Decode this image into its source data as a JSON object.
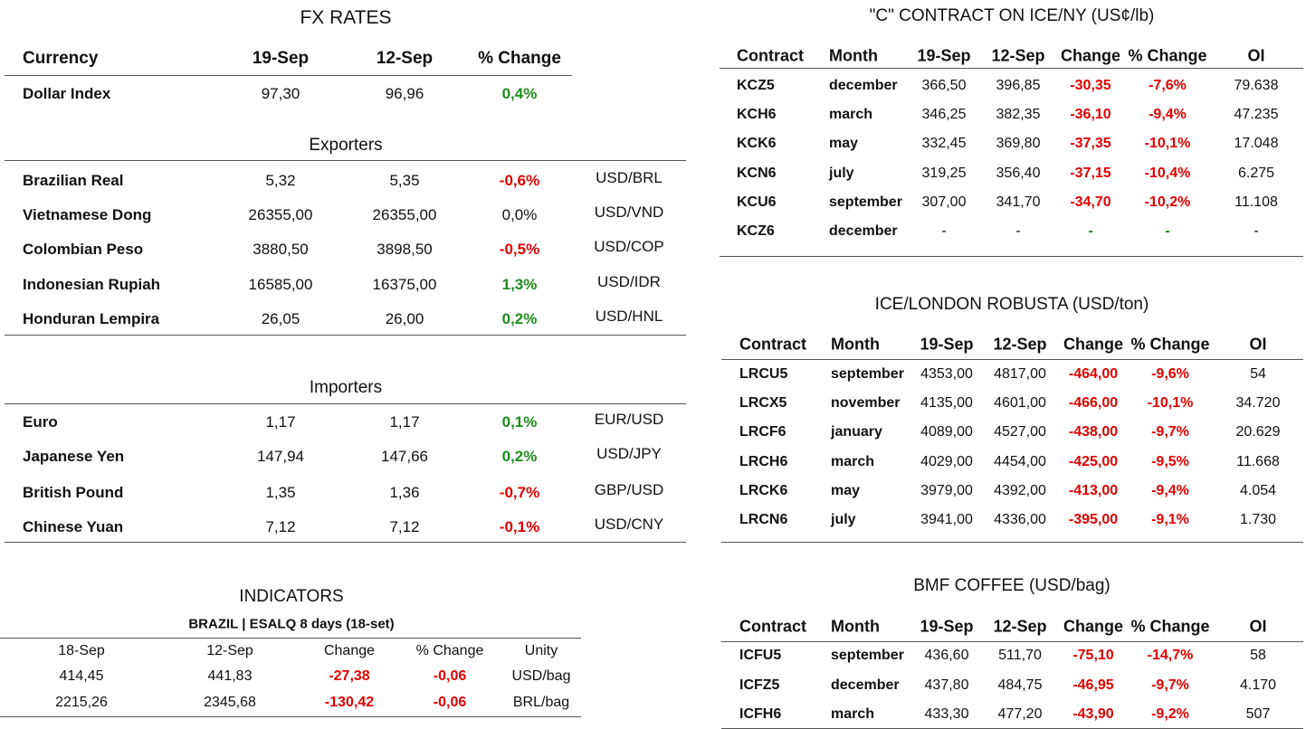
{
  "fx": {
    "title": "FX RATES",
    "headers": [
      "Currency",
      "19-Sep",
      "12-Sep",
      "% Change"
    ],
    "dollar_index": [
      "Dollar Index",
      "97,30",
      "96,96",
      "0,4%"
    ],
    "exporters": {
      "title": "Exporters",
      "rows": [
        [
          "Brazilian Real",
          "5,32",
          "5,35",
          "-0,6%",
          "USD/BRL"
        ],
        [
          "Vietnamese Dong",
          "26355,00",
          "26355,00",
          "0,0%",
          "USD/VND"
        ],
        [
          "Colombian Peso",
          "3880,50",
          "3898,50",
          "-0,5%",
          "USD/COP"
        ],
        [
          "Indonesian Rupiah",
          "16585,00",
          "16375,00",
          "1,3%",
          "USD/IDR"
        ],
        [
          "Honduran Lempira",
          "26,05",
          "26,00",
          "0,2%",
          "USD/HNL"
        ]
      ]
    },
    "importers": {
      "title": "Importers",
      "rows": [
        [
          "Euro",
          "1,17",
          "1,17",
          "0,1%",
          "EUR/USD"
        ],
        [
          "Japanese Yen",
          "147,94",
          "147,66",
          "0,2%",
          "USD/JPY"
        ],
        [
          "British Pound",
          "1,35",
          "1,36",
          "-0,7%",
          "GBP/USD"
        ],
        [
          "Chinese Yuan",
          "7,12",
          "7,12",
          "-0,1%",
          "USD/CNY"
        ]
      ]
    }
  },
  "indicators": {
    "title": "INDICATORS",
    "subtitle": "BRAZIL | ESALQ 8 days (18-set)",
    "headers": [
      "18-Sep",
      "12-Sep",
      "Change",
      "% Change",
      "Unity"
    ],
    "rows": [
      [
        "414,45",
        "441,83",
        "-27,38",
        "-0,06",
        "USD/bag"
      ],
      [
        "2215,26",
        "2345,68",
        "-130,42",
        "-0,06",
        "BRL/bag"
      ]
    ]
  },
  "ice_ny": {
    "title": "\"C\" CONTRACT ON ICE/NY (US¢/lb)",
    "headers": [
      "Contract",
      "Month",
      "19-Sep",
      "12-Sep",
      "Change",
      "% Change",
      "OI"
    ],
    "rows": [
      [
        "KCZ5",
        "december",
        "366,50",
        "396,85",
        "-30,35",
        "-7,6%",
        "79.638"
      ],
      [
        "KCH6",
        "march",
        "346,25",
        "382,35",
        "-36,10",
        "-9,4%",
        "47.235"
      ],
      [
        "KCK6",
        "may",
        "332,45",
        "369,80",
        "-37,35",
        "-10,1%",
        "17.048"
      ],
      [
        "KCN6",
        "july",
        "319,25",
        "356,40",
        "-37,15",
        "-10,4%",
        "6.275"
      ],
      [
        "KCU6",
        "september",
        "307,00",
        "341,70",
        "-34,70",
        "-10,2%",
        "11.108"
      ],
      [
        "KCZ6",
        "december",
        "-",
        "-",
        "-",
        "-",
        "-"
      ]
    ]
  },
  "robusta": {
    "title": "ICE/LONDON ROBUSTA (USD/ton)",
    "headers": [
      "Contract",
      "Month",
      "19-Sep",
      "12-Sep",
      "Change",
      "% Change",
      "OI"
    ],
    "rows": [
      [
        "LRCU5",
        "september",
        "4353,00",
        "4817,00",
        "-464,00",
        "-9,6%",
        "54"
      ],
      [
        "LRCX5",
        "november",
        "4135,00",
        "4601,00",
        "-466,00",
        "-10,1%",
        "34.720"
      ],
      [
        "LRCF6",
        "january",
        "4089,00",
        "4527,00",
        "-438,00",
        "-9,7%",
        "20.629"
      ],
      [
        "LRCH6",
        "march",
        "4029,00",
        "4454,00",
        "-425,00",
        "-9,5%",
        "11.668"
      ],
      [
        "LRCK6",
        "may",
        "3979,00",
        "4392,00",
        "-413,00",
        "-9,4%",
        "4.054"
      ],
      [
        "LRCN6",
        "july",
        "3941,00",
        "4336,00",
        "-395,00",
        "-9,1%",
        "1.730"
      ]
    ]
  },
  "bmf": {
    "title": "BMF COFFEE (USD/bag)",
    "headers": [
      "Contract",
      "Month",
      "19-Sep",
      "12-Sep",
      "Change",
      "% Change",
      "OI"
    ],
    "rows": [
      [
        "ICFU5",
        "september",
        "436,60",
        "511,70",
        "-75,10",
        "-14,7%",
        "58"
      ],
      [
        "ICFZ5",
        "december",
        "437,80",
        "484,75",
        "-46,95",
        "-9,7%",
        "4.170"
      ],
      [
        "ICFH6",
        "march",
        "433,30",
        "477,20",
        "-43,90",
        "-9,2%",
        "507"
      ]
    ]
  }
}
